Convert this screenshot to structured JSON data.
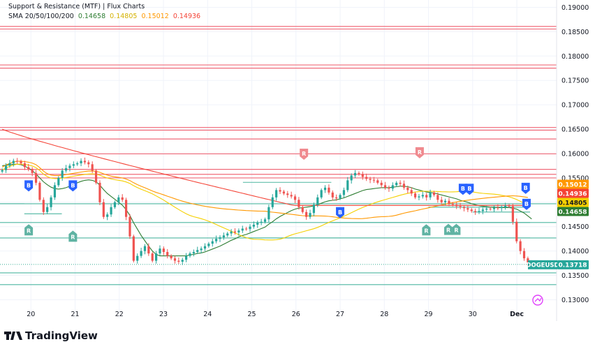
{
  "header": {
    "title": "Support & Resistance (MTF) | Flux Charts",
    "sma_label": "SMA 20/50/100/200",
    "sma_values": [
      "0.14658",
      "0.14805",
      "0.15012",
      "0.14936"
    ]
  },
  "brand": "TradingView",
  "colors": {
    "sma20": "#2e7d32",
    "sma50": "#f5d000",
    "sma100": "#ff9800",
    "sma200": "#f44336",
    "up_candle": "#26a69a",
    "down_candle": "#ef5350",
    "resistance": "#f06b7a",
    "support": "#4db6a0",
    "signal_b": "#2962ff",
    "signal_r_up": "#f08a8f",
    "signal_r_down": "#5fb3a3",
    "price_tag": "#26a69a"
  },
  "chart_data": {
    "type": "candlestick",
    "symbol": "DOGEUSD",
    "last_price": 0.13718,
    "price_tags": [
      {
        "label": "0.15012",
        "value": 0.15012,
        "color": "#ff9800"
      },
      {
        "label": "0.14936",
        "value": 0.14936,
        "color": "#f44336"
      },
      {
        "label": "0.14805",
        "value": 0.14805,
        "color": "#f5d000"
      },
      {
        "label": "0.14658",
        "value": 0.14658,
        "color": "#2e7d32"
      }
    ],
    "y_ticks": [
      "0.19000",
      "0.18500",
      "0.18000",
      "0.17500",
      "0.17000",
      "0.16500",
      "0.16000",
      "0.15500",
      "0.15000",
      "0.14500",
      "0.14000",
      "0.13500",
      "0.13000"
    ],
    "ylim": [
      0.1262,
      0.1915
    ],
    "x_ticks": [
      "20",
      "21",
      "22",
      "23",
      "24",
      "25",
      "26",
      "27",
      "28",
      "29",
      "30",
      "Dec"
    ],
    "xlim": [
      19.3,
      31.9
    ],
    "resistance_levels": [
      0.18608,
      0.18555,
      0.17817,
      0.17752,
      0.16536,
      0.16479,
      0.16298,
      0.15993,
      0.15676,
      0.15573,
      0.15499
    ],
    "support_levels": [
      0.14969,
      0.14584,
      0.14267,
      0.13726,
      0.13551,
      0.1331
    ],
    "support_segments": [
      {
        "x0": 19.3,
        "x1": 19.85,
        "y": 0.14969
      },
      {
        "x0": 19.85,
        "x1": 20.7,
        "y": 0.14763
      },
      {
        "x0": 24.8,
        "x1": 26.8,
        "y": 0.15409
      },
      {
        "x0": 24.8,
        "x1": 31.3,
        "y": 0.14267
      },
      {
        "x0": 26.8,
        "x1": 31.3,
        "y": 0.14584
      },
      {
        "x0": 29.0,
        "x1": 31.3,
        "y": 0.149
      },
      {
        "x0": 30.0,
        "x1": 31.3,
        "y": 0.148
      }
    ],
    "signals": [
      {
        "label": "B",
        "x": 19.95,
        "y": 0.1535,
        "type": "b"
      },
      {
        "label": "B",
        "x": 20.95,
        "y": 0.1535,
        "type": "b"
      },
      {
        "label": "B",
        "x": 27.0,
        "y": 0.148,
        "type": "b"
      },
      {
        "label": "B",
        "x": 29.78,
        "y": 0.1528,
        "type": "b"
      },
      {
        "label": "B",
        "x": 29.93,
        "y": 0.1528,
        "type": "b"
      },
      {
        "label": "B",
        "x": 31.2,
        "y": 0.153,
        "type": "b"
      },
      {
        "label": "B",
        "x": 31.22,
        "y": 0.1497,
        "type": "b"
      },
      {
        "label": "R",
        "x": 26.18,
        "y": 0.16,
        "type": "r_up"
      },
      {
        "label": "R",
        "x": 28.8,
        "y": 0.1603,
        "type": "r_up"
      },
      {
        "label": "R",
        "x": 19.95,
        "y": 0.1442,
        "type": "r_down"
      },
      {
        "label": "R",
        "x": 20.95,
        "y": 0.1429,
        "type": "r_down"
      },
      {
        "label": "R",
        "x": 28.95,
        "y": 0.1442,
        "type": "r_down"
      },
      {
        "label": "R",
        "x": 29.45,
        "y": 0.1443,
        "type": "r_down"
      },
      {
        "label": "R",
        "x": 29.63,
        "y": 0.1443,
        "type": "r_down"
      }
    ],
    "close": [
      0.1566,
      0.1575,
      0.158,
      0.1585,
      0.1584,
      0.158,
      0.1572,
      0.1568,
      0.156,
      0.154,
      0.1505,
      0.148,
      0.149,
      0.151,
      0.1535,
      0.155,
      0.1565,
      0.157,
      0.1575,
      0.1578,
      0.158,
      0.1585,
      0.1582,
      0.1578,
      0.1565,
      0.154,
      0.15,
      0.147,
      0.1475,
      0.149,
      0.15,
      0.151,
      0.1505,
      0.147,
      0.143,
      0.138,
      0.139,
      0.14,
      0.141,
      0.1395,
      0.138,
      0.1395,
      0.1405,
      0.1398,
      0.139,
      0.1385,
      0.138,
      0.1378,
      0.1382,
      0.139,
      0.1395,
      0.1398,
      0.1402,
      0.1405,
      0.141,
      0.1415,
      0.142,
      0.1425,
      0.1428,
      0.1432,
      0.1436,
      0.144,
      0.1438,
      0.1442,
      0.1446,
      0.1445,
      0.145,
      0.1454,
      0.1458,
      0.146,
      0.1465,
      0.149,
      0.151,
      0.1525,
      0.1522,
      0.1518,
      0.1515,
      0.1512,
      0.1505,
      0.149,
      0.148,
      0.147,
      0.1478,
      0.1495,
      0.151,
      0.1525,
      0.153,
      0.152,
      0.151,
      0.1508,
      0.1515,
      0.1525,
      0.1545,
      0.1555,
      0.156,
      0.1558,
      0.1552,
      0.1548,
      0.1546,
      0.1545,
      0.154,
      0.1535,
      0.153,
      0.1528,
      0.1535,
      0.154,
      0.1538,
      0.153,
      0.1525,
      0.1518,
      0.151,
      0.1512,
      0.1515,
      0.151,
      0.152,
      0.1515,
      0.1505,
      0.15,
      0.1503,
      0.1497,
      0.1495,
      0.1492,
      0.149,
      0.1488,
      0.1485,
      0.1482,
      0.148,
      0.1482,
      0.1485,
      0.1487,
      0.1486,
      0.1489,
      0.1488,
      0.149,
      0.1493,
      0.1492,
      0.146,
      0.142,
      0.14,
      0.1385,
      0.13718
    ],
    "sma20": [
      0.1575,
      0.1576,
      0.1577,
      0.1578,
      0.1578,
      0.1577,
      0.1574,
      0.157,
      0.1565,
      0.1558,
      0.155,
      0.1542,
      0.1536,
      0.1531,
      0.1528,
      0.1527,
      0.1528,
      0.153,
      0.1533,
      0.1536,
      0.154,
      0.1543,
      0.1545,
      0.1546,
      0.1545,
      0.1542,
      0.1535,
      0.1526,
      0.1518,
      0.1512,
      0.1506,
      0.15,
      0.1494,
      0.1485,
      0.1473,
      0.1458,
      0.1445,
      0.1432,
      0.1421,
      0.141,
      0.14,
      0.1393,
      0.139,
      0.139,
      0.139,
      0.139,
      0.139,
      0.139,
      0.139,
      0.139,
      0.1392,
      0.1393,
      0.1395,
      0.1396,
      0.1398,
      0.1401,
      0.1404,
      0.1407,
      0.141,
      0.1414,
      0.1418,
      0.1422,
      0.1425,
      0.1429,
      0.1432,
      0.1434,
      0.1437,
      0.144,
      0.1443,
      0.1446,
      0.1449,
      0.1455,
      0.146,
      0.1466,
      0.1471,
      0.1475,
      0.1479,
      0.1483,
      0.1486,
      0.1488,
      0.1489,
      0.149,
      0.1491,
      0.1493,
      0.1495,
      0.1498,
      0.1501,
      0.1503,
      0.1504,
      0.1505,
      0.1507,
      0.1509,
      0.1512,
      0.1515,
      0.1518,
      0.1521,
      0.1524,
      0.1526,
      0.1527,
      0.1528,
      0.1529,
      0.153,
      0.153,
      0.153,
      0.1531,
      0.1532,
      0.1533,
      0.1533,
      0.1532,
      0.153,
      0.1527,
      0.1525,
      0.1523,
      0.1521,
      0.152,
      0.1519,
      0.1517,
      0.1515,
      0.1513,
      0.1511,
      0.1509,
      0.1507,
      0.1504,
      0.1502,
      0.15,
      0.1497,
      0.1495,
      0.1493,
      0.1492,
      0.1491,
      0.149,
      0.149,
      0.1489,
      0.1489,
      0.1489,
      0.1489,
      0.1488,
      0.1486,
      0.1482,
      0.1478,
      0.1472,
      0.14658
    ]
  }
}
